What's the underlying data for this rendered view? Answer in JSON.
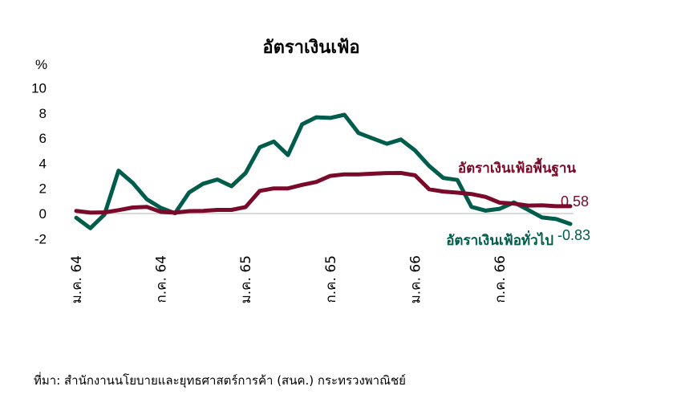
{
  "chart_data": {
    "type": "line",
    "title": "อัตราเงินเฟ้อ",
    "ylabel": "%",
    "ylim": [
      -2,
      10
    ],
    "yticks": [
      "-2",
      "0",
      "2",
      "4",
      "6",
      "8",
      "10"
    ],
    "x_tick_labels": [
      "ม.ค. 64",
      "ก.ค. 64",
      "ม.ค. 65",
      "ก.ค. 65",
      "ม.ค. 66",
      "ก.ค. 66"
    ],
    "x_tick_index": [
      0,
      6,
      12,
      18,
      24,
      30
    ],
    "colors": {
      "headline": "#005c4b",
      "core": "#7a0a2a",
      "zero_line": "#d9d9d9"
    },
    "series": [
      {
        "key": "headline",
        "name": "อัตราเงินเฟ้อทั่วไป",
        "end_label": "-0.83",
        "values": [
          -0.34,
          -1.17,
          -0.08,
          3.41,
          2.44,
          1.14,
          0.45,
          0.02,
          1.68,
          2.38,
          2.71,
          2.17,
          3.23,
          5.28,
          5.73,
          4.65,
          7.1,
          7.66,
          7.61,
          7.86,
          6.41,
          5.98,
          5.55,
          5.89,
          5.02,
          3.79,
          2.83,
          2.67,
          0.53,
          0.23,
          0.38,
          0.88,
          0.3,
          -0.31,
          -0.44,
          -0.83
        ]
      },
      {
        "key": "core",
        "name": "อัตราเงินเฟ้อพื้นฐาน",
        "end_label": "0.58",
        "values": [
          0.21,
          0.07,
          0.09,
          0.27,
          0.48,
          0.53,
          0.13,
          0.07,
          0.19,
          0.21,
          0.29,
          0.29,
          0.52,
          1.8,
          2.0,
          2.0,
          2.28,
          2.51,
          3.0,
          3.12,
          3.12,
          3.17,
          3.22,
          3.23,
          3.04,
          1.93,
          1.75,
          1.66,
          1.55,
          1.32,
          0.86,
          0.79,
          0.63,
          0.66,
          0.58,
          0.58
        ]
      }
    ]
  },
  "source": "ที่มา: สำนักงานนโยบายและยุทธศาสตร์การค้า (สนค.) กระทรวงพาณิชย์"
}
